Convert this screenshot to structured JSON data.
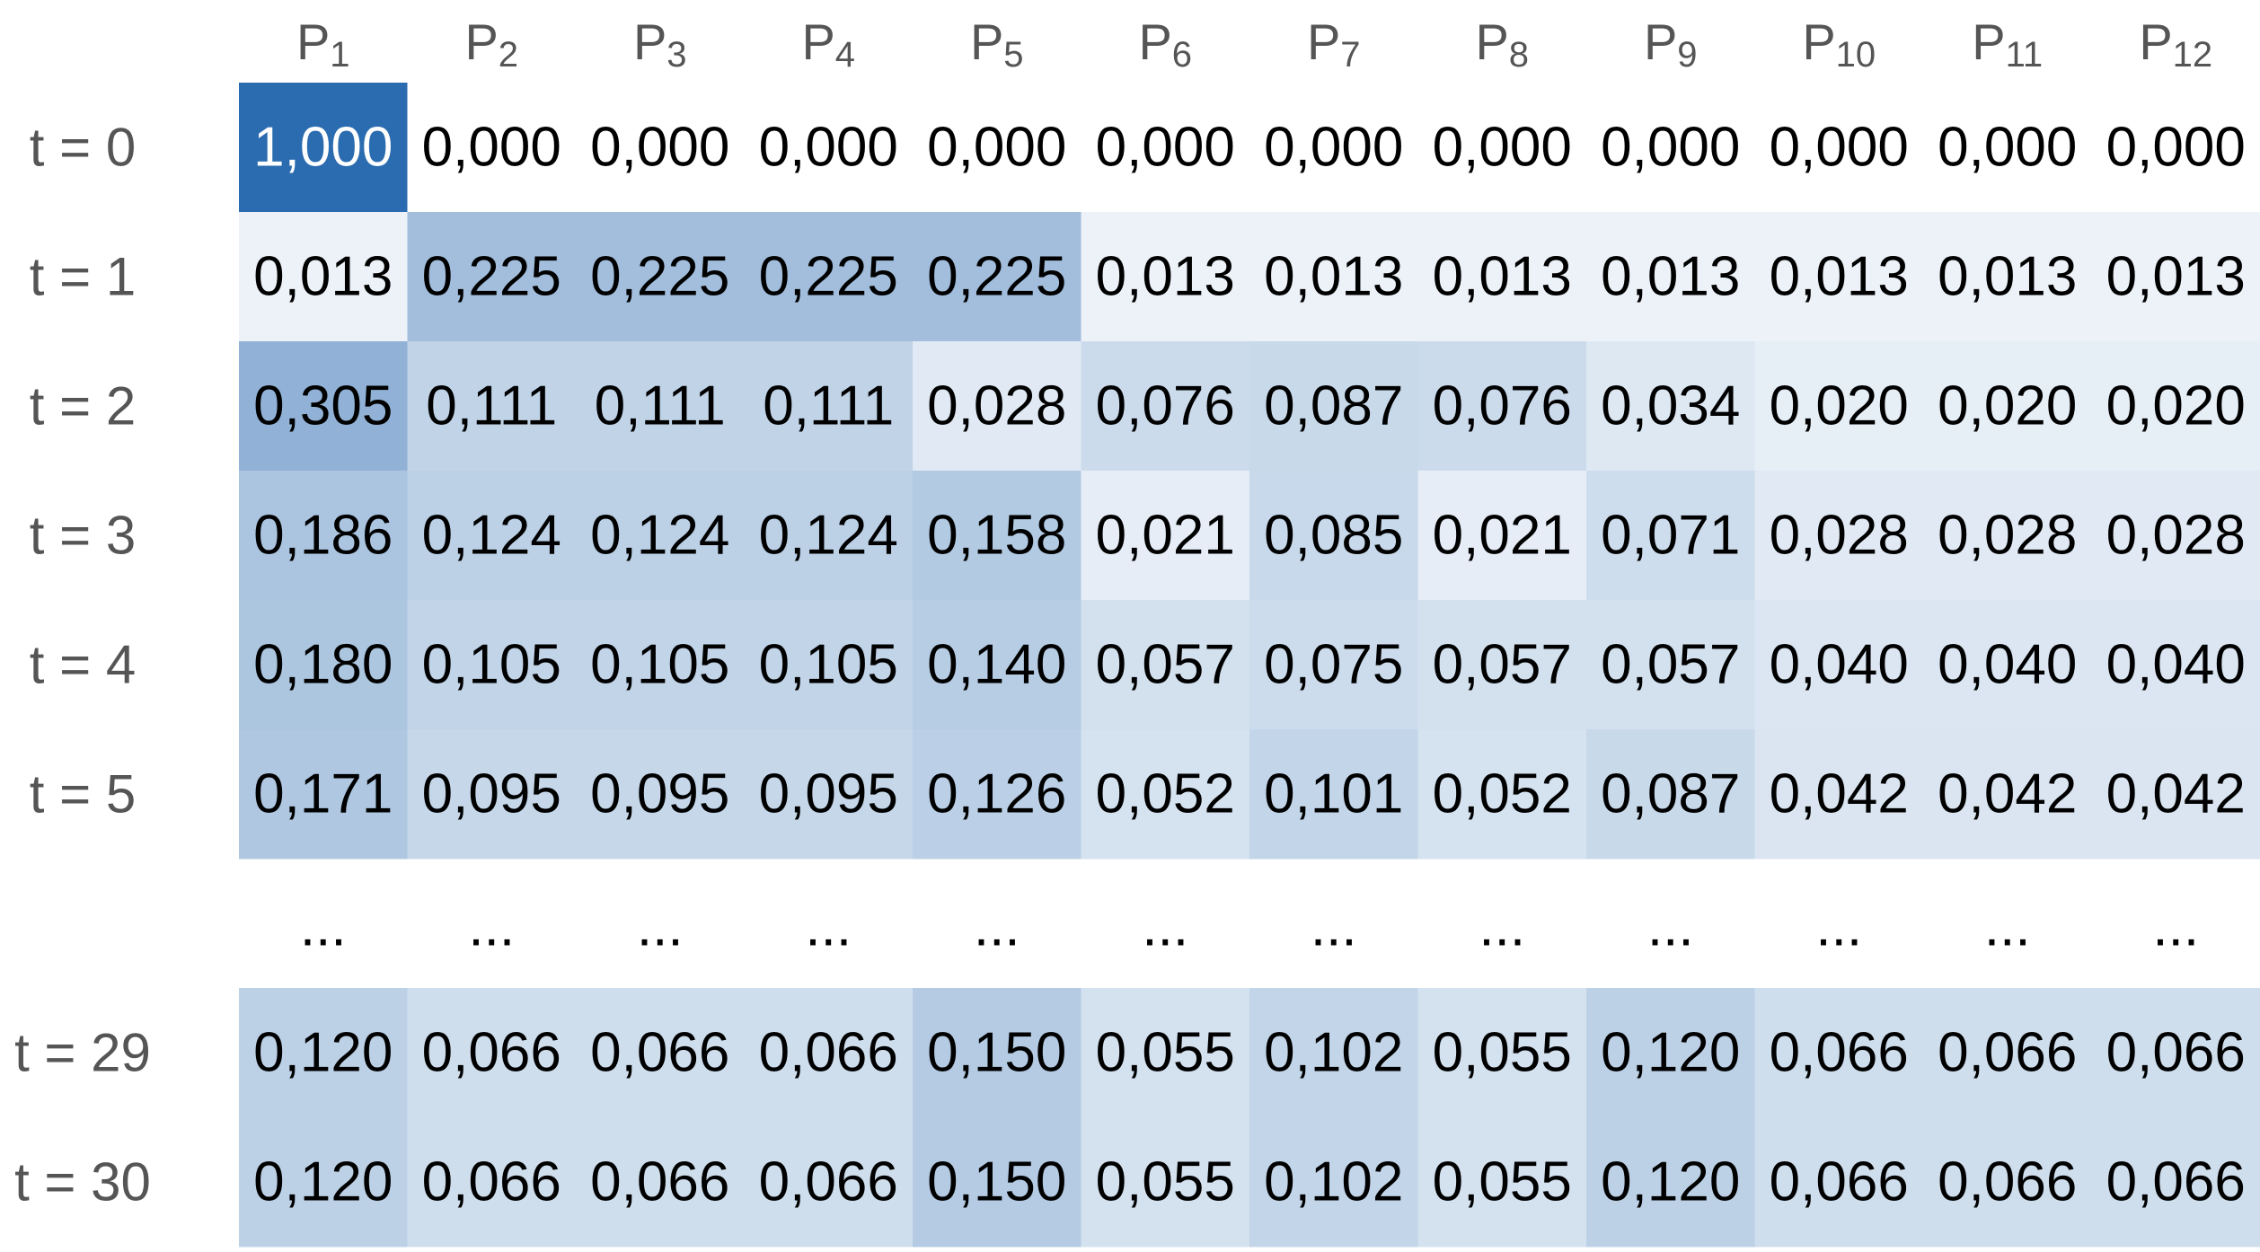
{
  "chart_data": {
    "type": "heatmap",
    "columns": [
      {
        "base": "P",
        "sub": "1"
      },
      {
        "base": "P",
        "sub": "2"
      },
      {
        "base": "P",
        "sub": "3"
      },
      {
        "base": "P",
        "sub": "4"
      },
      {
        "base": "P",
        "sub": "5"
      },
      {
        "base": "P",
        "sub": "6"
      },
      {
        "base": "P",
        "sub": "7"
      },
      {
        "base": "P",
        "sub": "8"
      },
      {
        "base": "P",
        "sub": "9"
      },
      {
        "base": "P",
        "sub": "10"
      },
      {
        "base": "P",
        "sub": "11"
      },
      {
        "base": "P",
        "sub": "12"
      }
    ],
    "rows": [
      {
        "label": "t = 0",
        "values": [
          "1,000",
          "0,000",
          "0,000",
          "0,000",
          "0,000",
          "0,000",
          "0,000",
          "0,000",
          "0,000",
          "0,000",
          "0,000",
          "0,000"
        ]
      },
      {
        "label": "t = 1",
        "values": [
          "0,013",
          "0,225",
          "0,225",
          "0,225",
          "0,225",
          "0,013",
          "0,013",
          "0,013",
          "0,013",
          "0,013",
          "0,013",
          "0,013"
        ]
      },
      {
        "label": "t = 2",
        "values": [
          "0,305",
          "0,111",
          "0,111",
          "0,111",
          "0,028",
          "0,076",
          "0,087",
          "0,076",
          "0,034",
          "0,020",
          "0,020",
          "0,020"
        ]
      },
      {
        "label": "t = 3",
        "values": [
          "0,186",
          "0,124",
          "0,124",
          "0,124",
          "0,158",
          "0,021",
          "0,085",
          "0,021",
          "0,071",
          "0,028",
          "0,028",
          "0,028"
        ]
      },
      {
        "label": "t = 4",
        "values": [
          "0,180",
          "0,105",
          "0,105",
          "0,105",
          "0,140",
          "0,057",
          "0,075",
          "0,057",
          "0,057",
          "0,040",
          "0,040",
          "0,040"
        ]
      },
      {
        "label": "t = 5",
        "values": [
          "0,171",
          "0,095",
          "0,095",
          "0,095",
          "0,126",
          "0,052",
          "0,101",
          "0,052",
          "0,087",
          "0,042",
          "0,042",
          "0,042"
        ]
      },
      {
        "label": "",
        "ellipsis": true,
        "values": [
          "...",
          "...",
          "...",
          "...",
          "...",
          "...",
          "...",
          "...",
          "...",
          "...",
          "...",
          "..."
        ]
      },
      {
        "label": "t = 29",
        "values": [
          "0,120",
          "0,066",
          "0,066",
          "0,066",
          "0,150",
          "0,055",
          "0,102",
          "0,055",
          "0,120",
          "0,066",
          "0,066",
          "0,066"
        ]
      },
      {
        "label": "t = 30",
        "values": [
          "0,120",
          "0,066",
          "0,066",
          "0,066",
          "0,150",
          "0,055",
          "0,102",
          "0,055",
          "0,120",
          "0,066",
          "0,066",
          "0,066"
        ]
      }
    ],
    "colors": {
      "high": "#2b6cb0",
      "low": "#ffffff",
      "text_dark": "#000000",
      "text_light": "#ffffff",
      "label": "#555555"
    }
  }
}
